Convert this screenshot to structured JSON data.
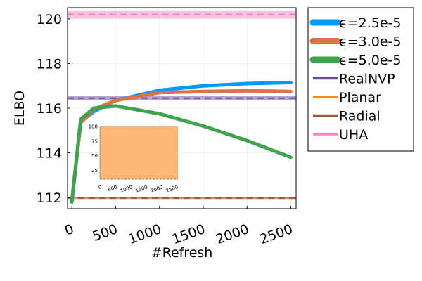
{
  "chart_data": {
    "type": "line",
    "xlabel": "#Refresh",
    "ylabel": "ELBO",
    "xlim": [
      -50,
      2560
    ],
    "ylim": [
      111.5,
      120.5
    ],
    "xticks": [
      0,
      500,
      1000,
      1500,
      2000,
      2500
    ],
    "xtick_labels": [
      "0",
      "500",
      "1000",
      "1500",
      "2000",
      "2500"
    ],
    "yticks": [
      112,
      114,
      116,
      118,
      120
    ],
    "ytick_labels": [
      "112",
      "114",
      "116",
      "118",
      "120"
    ],
    "grid": true,
    "legend_position": "outside-right",
    "series": [
      {
        "name": "ϵ=2.5e-5",
        "color": "#009AFA",
        "x": [
          0,
          100,
          250,
          500,
          1000,
          1500,
          2000,
          2500
        ],
        "y": [
          111.85,
          115.4,
          115.85,
          116.35,
          116.8,
          117.0,
          117.1,
          117.15
        ]
      },
      {
        "name": "ϵ=3.0e-5",
        "color": "#E36F47",
        "x": [
          0,
          100,
          250,
          500,
          1000,
          1500,
          2000,
          2500
        ],
        "y": [
          111.85,
          115.35,
          115.95,
          116.35,
          116.7,
          116.75,
          116.78,
          116.75
        ]
      },
      {
        "name": "ϵ=5.0e-5",
        "color": "#3EA44E",
        "x": [
          0,
          100,
          250,
          500,
          1000,
          1500,
          2000,
          2500
        ],
        "y": [
          111.8,
          115.5,
          116.0,
          116.1,
          115.75,
          115.2,
          114.55,
          113.8
        ]
      }
    ],
    "reference_lines": [
      {
        "name": "RealNVP",
        "color": "#6C4AA0",
        "y": 116.45,
        "band": [
          116.35,
          116.55
        ]
      },
      {
        "name": "Planar",
        "color": "#F28C1E",
        "y": 111.97,
        "band": [
          111.93,
          112.01
        ]
      },
      {
        "name": "Radial",
        "color": "#9C5A2E",
        "y": 111.98,
        "band": [
          111.94,
          112.02
        ]
      },
      {
        "name": "UHA",
        "color": "#F285C4",
        "y": 120.2,
        "band": [
          120.02,
          120.38
        ]
      }
    ],
    "inset": {
      "xticks": [
        0,
        500,
        1000,
        1500,
        2000,
        2500
      ],
      "xtick_labels": [
        "0",
        "500",
        "1000",
        "1500",
        "2000",
        "2500"
      ],
      "yticks": [
        25,
        50,
        75,
        100
      ],
      "ytick_labels": [
        "25",
        "50",
        "75",
        "100"
      ],
      "xlim": [
        -30,
        2530
      ],
      "ylim": [
        10,
        100
      ],
      "fill_color": "#FDB777"
    }
  }
}
